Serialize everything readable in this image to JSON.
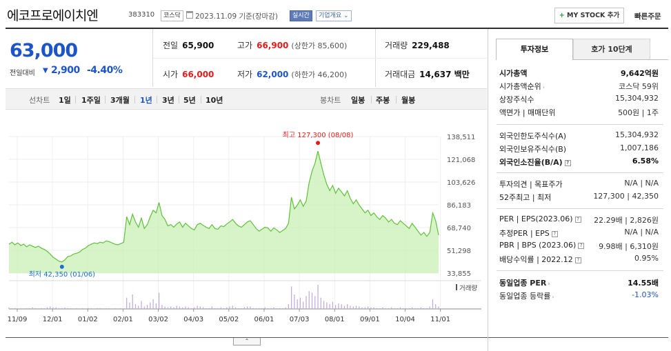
{
  "header": {
    "name": "에코프로에이치엔",
    "code": "383310",
    "market": "코스닥",
    "date": "2023.11.09 기준(장마감)",
    "realtime": "실시간",
    "overview": "기업개요",
    "mystock_plus": "+",
    "mystock": "MY STOCK 추가",
    "quick_order": "빠른주문"
  },
  "price": {
    "current": "63,000",
    "change_label": "전일대비",
    "change_arrow": "▼",
    "change": "2,900",
    "change_pct": "-4.40%"
  },
  "stats": {
    "prev_label": "전일",
    "prev": "65,900",
    "high_label": "고가",
    "high": "66,900",
    "upper_limit": "(상한가 85,600)",
    "volume_label": "거래량",
    "volume": "229,488",
    "open_label": "시가",
    "open": "66,000",
    "low_label": "저가",
    "low": "62,000",
    "lower_limit": "(하한가 46,200)",
    "amount_label": "거래대금",
    "amount": "14,637 백만"
  },
  "period": {
    "line_label": "선차트",
    "line_opts": [
      "1일",
      "1주일",
      "3개월",
      "1년",
      "3년",
      "5년",
      "10년"
    ],
    "selected": "1년",
    "candle_label": "봉차트",
    "candle_opts": [
      "일봉",
      "주봉",
      "월봉"
    ]
  },
  "chart_data": {
    "type": "area",
    "y_ticks": [
      "138,511",
      "121,068",
      "103,626",
      "86,183",
      "68,740",
      "51,298",
      "33,855"
    ],
    "ylim": [
      33855,
      138511
    ],
    "x_ticks": [
      "11/09",
      "12/01",
      "01/02",
      "02/01",
      "03/02",
      "04/03",
      "05/02",
      "06/01",
      "07/03",
      "08/01",
      "09/01",
      "10/04",
      "11/01"
    ],
    "max_label": "최고 127,300 (08/08)",
    "min_label": "최저 42,350 (01/06)",
    "volume_label": "거래량",
    "color_line": "#5fc13a",
    "color_fill": "#c8f0b4",
    "color_max": "#e31b1b",
    "color_min": "#1d6fd0",
    "color_volume": "#c0a8d8",
    "values": [
      56000,
      57500,
      55500,
      57000,
      55000,
      56000,
      54000,
      55500,
      54500,
      53500,
      54500,
      53000,
      52000,
      50500,
      48500,
      46000,
      44500,
      43000,
      42350,
      44000,
      46500,
      47000,
      48500,
      49000,
      50000,
      52000,
      53000,
      55000,
      56000,
      57000,
      56500,
      57500,
      57000,
      58500,
      58000,
      57000,
      56000,
      55500,
      56500,
      57500,
      77000,
      71000,
      79000,
      73000,
      69000,
      76000,
      68000,
      71000,
      77000,
      82000,
      80000,
      88000,
      78000,
      75000,
      70000,
      71000,
      69000,
      71500,
      73000,
      69000,
      72000,
      70000,
      68000,
      67000,
      71000,
      72000,
      70500,
      69000,
      68000,
      71000,
      68000,
      67500,
      70000,
      69500,
      71500,
      73000,
      75000,
      72000,
      70000,
      69000,
      71000,
      73000,
      74000,
      71000,
      68000,
      66000,
      67500,
      69000,
      68500,
      66000,
      68500,
      67000,
      65000,
      66500,
      68000,
      72000,
      92000,
      83000,
      86000,
      90000,
      85000,
      89000,
      103000,
      112000,
      118000,
      127300,
      118000,
      109000,
      102000,
      97000,
      101000,
      95000,
      99000,
      96000,
      93000,
      97000,
      91000,
      87000,
      90000,
      86000,
      83000,
      80000,
      82000,
      78000,
      80000,
      77000,
      75000,
      78000,
      76000,
      73000,
      75000,
      72000,
      71000,
      74000,
      72000,
      70000,
      68000,
      72000,
      69000,
      66000,
      63000,
      65000,
      62000,
      65000,
      80000,
      74000,
      63000
    ],
    "volume": [
      2,
      1,
      1,
      0,
      1,
      0,
      1,
      1,
      2,
      1,
      0,
      1,
      1,
      2,
      3,
      2,
      2,
      1,
      1,
      2,
      1,
      1,
      0,
      1,
      0,
      1,
      0,
      1,
      1,
      0,
      1,
      1,
      0,
      1,
      1,
      0,
      1,
      0,
      1,
      0,
      14,
      8,
      18,
      6,
      4,
      10,
      3,
      5,
      8,
      12,
      7,
      20,
      5,
      3,
      2,
      3,
      2,
      4,
      3,
      2,
      3,
      2,
      1,
      2,
      4,
      3,
      2,
      1,
      1,
      3,
      1,
      1,
      2,
      1,
      2,
      3,
      4,
      2,
      1,
      1,
      2,
      3,
      3,
      1,
      1,
      1,
      1,
      2,
      1,
      1,
      2,
      1,
      1,
      1,
      2,
      6,
      28,
      18,
      12,
      14,
      9,
      16,
      22,
      20,
      16,
      30,
      14,
      10,
      8,
      6,
      9,
      5,
      7,
      6,
      4,
      6,
      4,
      3,
      4,
      3,
      2,
      2,
      3,
      2,
      2,
      1,
      1,
      2,
      1,
      1,
      2,
      1,
      1,
      2,
      1,
      1,
      1,
      2,
      1,
      1,
      2,
      1,
      1,
      3,
      12,
      6,
      3
    ]
  },
  "invest": {
    "tab1": "투자정보",
    "tab2": "호가 10단계",
    "rows": [
      {
        "l": "시가총액",
        "r": "9,642억원"
      },
      {
        "l": "시가총액순위",
        "r": "코스닥 59위"
      },
      {
        "l": "상장주식수",
        "r": "15,304,932"
      },
      {
        "l": "액면가 | 매매단위",
        "r": "500원 | 1주"
      },
      {
        "l": "외국인한도주식수(A)",
        "r": "15,304,932"
      },
      {
        "l": "외국인보유주식수(B)",
        "r": "1,007,186"
      },
      {
        "l": "외국인소진율(B/A)",
        "r": "6.58%"
      },
      {
        "l": "투자의견 | 목표주가",
        "r": "N/A | N/A"
      },
      {
        "l": "52주최고 | 최저",
        "r": "127,300 | 42,350"
      },
      {
        "l": "PER | EPS(2023.06)",
        "r": "22.29배 | 2,826원"
      },
      {
        "l": "추정PER | EPS",
        "r": "N/A | N/A"
      },
      {
        "l": "PBR | BPS (2023.06)",
        "r": "9.98배 | 6,310원"
      },
      {
        "l": "배당수익률 | 2022.12",
        "r": "0.95%"
      },
      {
        "l": "동일업종 PER",
        "r": "14.55배"
      },
      {
        "l": "동일업종 등락률",
        "r": "-1.03%"
      }
    ]
  }
}
